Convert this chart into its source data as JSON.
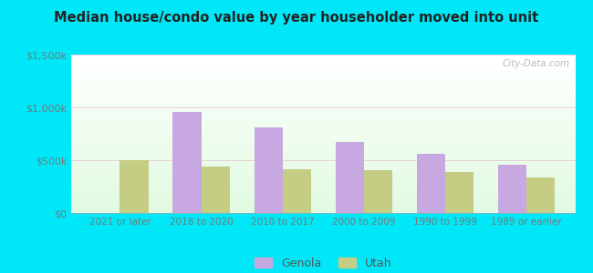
{
  "title": "Median house/condo value by year householder moved into unit",
  "categories": [
    "2021 or later",
    "2018 to 2020",
    "2010 to 2017",
    "2000 to 2009",
    "1990 to 1999",
    "1989 or earlier"
  ],
  "genola_values": [
    null,
    960000,
    810000,
    670000,
    560000,
    460000
  ],
  "utah_values": [
    500000,
    440000,
    410000,
    405000,
    385000,
    335000
  ],
  "genola_color": "#c8a8e0",
  "utah_color": "#c5cc84",
  "background_outer": "#00e8f8",
  "ylim": [
    0,
    1500000
  ],
  "yticks": [
    0,
    500000,
    1000000,
    1500000
  ],
  "ytick_labels": [
    "$0",
    "$500k",
    "$1,000k",
    "$1,500k"
  ],
  "bar_width": 0.35,
  "legend_labels": [
    "Genola",
    "Utah"
  ],
  "watermark": "City-Data.com"
}
